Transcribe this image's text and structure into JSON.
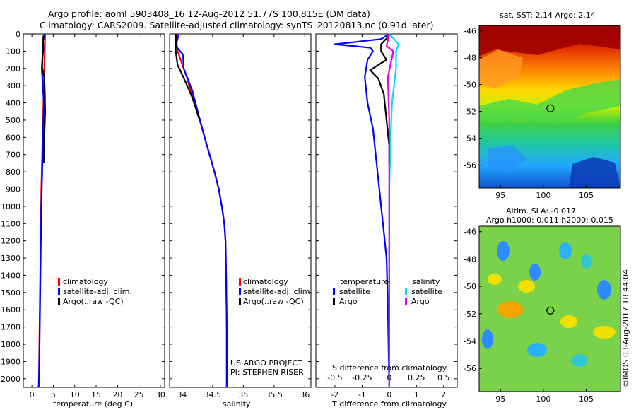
{
  "title": {
    "line1": "Argo profile: aoml 5903408_16 12-Aug-2012 51.77S 100.815E (DM data)",
    "line2": "Climatology: CARS2009. Satellite-adjusted climatology: synTS_20120813.nc (0.91d later)"
  },
  "colors": {
    "climatology": "#ff0000",
    "satellite": "#0000ff",
    "argo": "#000000",
    "salinity_satellite": "#00e0f0",
    "salinity_argo": "#e000e0"
  },
  "chart_data": [
    {
      "type": "line",
      "id": "temperature",
      "xlabel": "temperature (deg C)",
      "xlim": [
        -2,
        31
      ],
      "xticks": [
        0,
        5,
        10,
        15,
        20,
        25,
        30
      ],
      "ylim": [
        0,
        2050
      ],
      "yticks": [
        0,
        100,
        200,
        300,
        400,
        500,
        600,
        700,
        800,
        900,
        1000,
        1100,
        1200,
        1300,
        1400,
        1500,
        1600,
        1700,
        1800,
        1900,
        2000
      ],
      "yreversed": true,
      "legend": {
        "position": "lower-left",
        "entries": [
          "climatology",
          "satellite-adj. clim.",
          "Argo(..raw -QC)"
        ]
      },
      "series": [
        {
          "name": "climatology",
          "color": "#ff0000",
          "x": [
            3.1,
            3.0,
            2.9,
            2.8,
            2.6,
            2.4,
            2.2,
            2.1,
            2.0,
            1.9,
            1.8,
            1.7,
            1.6
          ],
          "y": [
            0,
            100,
            200,
            300,
            500,
            700,
            900,
            1100,
            1300,
            1500,
            1700,
            1900,
            2050
          ]
        },
        {
          "name": "satellite-adj. clim.",
          "color": "#0000ff",
          "x": [
            2.9,
            2.6,
            2.7,
            2.5,
            2.3,
            2.5,
            2.8,
            2.6,
            2.4,
            2.2,
            2.1,
            2.0,
            1.9,
            1.8,
            1.7,
            1.6
          ],
          "y": [
            0,
            40,
            90,
            130,
            200,
            280,
            400,
            600,
            800,
            1000,
            1200,
            1400,
            1600,
            1800,
            1950,
            2050
          ]
        },
        {
          "name": "Argo(..raw -QC)",
          "color": "#000000",
          "x": [
            2.7,
            2.5,
            2.4,
            2.9,
            3.0,
            3.1,
            2.9,
            2.8
          ],
          "y": [
            10,
            80,
            200,
            250,
            320,
            450,
            600,
            750
          ]
        }
      ]
    },
    {
      "type": "line",
      "id": "salinity",
      "xlabel": "salinity",
      "xlim": [
        33.8,
        36.1
      ],
      "xticks": [
        34,
        34.5,
        35,
        35.5,
        36
      ],
      "ylim": [
        0,
        2050
      ],
      "yreversed": true,
      "legend": {
        "position": "lower-left",
        "entries": [
          "climatology",
          "satellite-adj. clim.",
          "Argo(..raw -QC)"
        ]
      },
      "annotations": [
        "US ARGO PROJECT",
        "PI: STEPHEN RISER"
      ],
      "series": [
        {
          "name": "climatology",
          "color": "#ff0000",
          "x": [
            33.9,
            33.93,
            34.08,
            34.2,
            34.29,
            34.37,
            34.45,
            34.53,
            34.6,
            34.65,
            34.69,
            34.71,
            34.72,
            34.73,
            34.73
          ],
          "y": [
            0,
            100,
            250,
            400,
            500,
            600,
            700,
            800,
            900,
            1000,
            1100,
            1200,
            1400,
            1700,
            2050
          ]
        },
        {
          "name": "satellite-adj. clim.",
          "color": "#0000ff",
          "x": [
            33.95,
            33.9,
            34.02,
            34.03,
            34.17,
            34.28,
            34.37,
            34.45,
            34.53,
            34.6,
            34.65,
            34.69,
            34.71,
            34.72,
            34.73,
            34.73
          ],
          "y": [
            0,
            70,
            120,
            200,
            330,
            480,
            600,
            700,
            800,
            900,
            1000,
            1100,
            1200,
            1400,
            1700,
            2050
          ]
        },
        {
          "name": "Argo(..raw -QC)",
          "color": "#000000",
          "x": [
            33.9,
            33.9,
            33.93,
            34.05,
            34.17,
            34.29
          ],
          "y": [
            0,
            100,
            180,
            270,
            370,
            500
          ]
        }
      ]
    },
    {
      "type": "line",
      "id": "difference",
      "xlabel": "T difference from climatology",
      "xlabel_top": "S difference from climatology",
      "xlim": [
        -2.7,
        2.5
      ],
      "xticks": [
        -2,
        -1,
        0,
        1,
        2
      ],
      "xticks_top": [
        -0.5,
        -0.25,
        0,
        0.25,
        0.5
      ],
      "ylim": [
        0,
        2050
      ],
      "yreversed": true,
      "legend": {
        "position": "lower-center",
        "groups": [
          {
            "title": "temperature",
            "entries": [
              "satellite",
              "Argo"
            ]
          },
          {
            "title": "salinity",
            "entries": [
              "satellite",
              "Argo"
            ]
          }
        ]
      },
      "series": [
        {
          "name": "temperature satellite",
          "color": "#0000ff",
          "x": [
            0,
            -0.3,
            -2.0,
            -0.7,
            -0.6,
            -0.8,
            -0.9,
            -0.8,
            -0.6,
            -0.5,
            -0.4,
            -0.3,
            -0.2,
            -0.1,
            -0.05,
            0
          ],
          "y": [
            0,
            30,
            60,
            80,
            100,
            150,
            250,
            400,
            550,
            700,
            850,
            1000,
            1150,
            1300,
            1600,
            2050
          ]
        },
        {
          "name": "temperature Argo",
          "color": "#000000",
          "x": [
            0,
            -0.3,
            -0.3,
            -0.1,
            -0.7,
            -0.4,
            -0.2,
            -0.1,
            0,
            0
          ],
          "y": [
            10,
            60,
            100,
            150,
            210,
            260,
            350,
            500,
            650,
            750
          ]
        },
        {
          "name": "salinity satellite",
          "color": "#00e0f0",
          "x": [
            0,
            0.35,
            0.25,
            0.25,
            0.1,
            0.05,
            0,
            0,
            0
          ],
          "y": [
            0,
            60,
            100,
            200,
            400,
            600,
            900,
            1500,
            2050
          ]
        },
        {
          "name": "salinity Argo",
          "color": "#e000e0",
          "x": [
            0,
            -0.1,
            0.15,
            -0.05,
            0,
            0
          ],
          "y": [
            0,
            70,
            100,
            250,
            500,
            2050
          ]
        }
      ]
    }
  ],
  "maps": [
    {
      "id": "sst-map",
      "title": "sat. SST: 2.14  Argo: 2.14",
      "xlim": [
        92.5,
        109
      ],
      "ylim": [
        -57.7,
        -45.6
      ],
      "xticks": [
        95,
        100,
        105
      ],
      "yticks": [
        -46,
        -48,
        -50,
        -52,
        -54,
        -56
      ],
      "marker": {
        "lon": 100.815,
        "lat": -51.77
      }
    },
    {
      "id": "sla-map",
      "title_line1": "Altim. SLA: -0.017",
      "title_line2": "Argo h1000: 0.011  h2000: 0.015",
      "xlim": [
        92.5,
        109
      ],
      "ylim": [
        -57.7,
        -45.6
      ],
      "xticks": [
        95,
        100,
        105
      ],
      "yticks": [
        -46,
        -48,
        -50,
        -52,
        -54,
        -56
      ],
      "marker": {
        "lon": 100.815,
        "lat": -51.77
      }
    }
  ],
  "footer": {
    "stamp": "©IMOS 03-Aug-2017 18:44:04"
  }
}
